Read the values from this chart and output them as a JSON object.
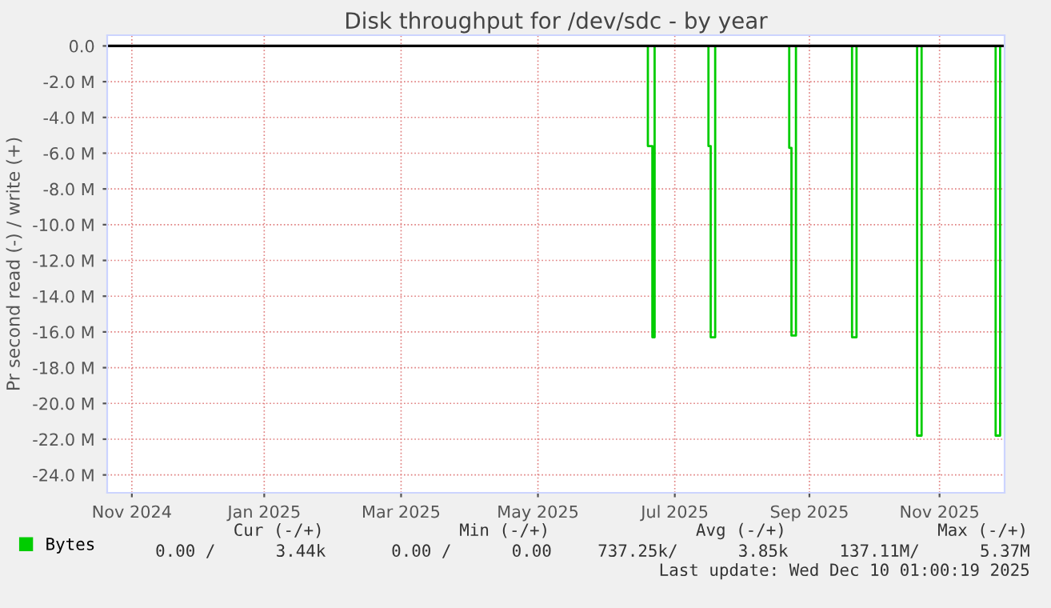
{
  "chart_data": {
    "type": "step",
    "title": "Disk throughput for /dev/sdc - by year",
    "ylabel": "Pr second read (-) / write (+)",
    "series": [
      {
        "name": "Bytes",
        "color": "#00cc00",
        "x": [
          "2024-11-06",
          "2025-07-05",
          "2025-07-07",
          "2025-07-08",
          "2025-08-01",
          "2025-08-02",
          "2025-08-04",
          "2025-09-06",
          "2025-09-07",
          "2025-09-09",
          "2025-10-04",
          "2025-10-06",
          "2025-11-02",
          "2025-11-04",
          "2025-12-07",
          "2025-12-09",
          "2025-12-10"
        ],
        "values": [
          0,
          -5.6,
          -16.3,
          0,
          -5.6,
          -16.3,
          0,
          -5.7,
          -16.2,
          0,
          -16.3,
          0,
          -21.8,
          0,
          -21.8,
          0,
          0
        ]
      }
    ],
    "xlim": [
      "2024-11-06",
      "2025-12-11"
    ],
    "xticks": [
      {
        "value": "2024-11-17",
        "label": "Nov 2024"
      },
      {
        "value": "2025-01-15",
        "label": "Jan 2025"
      },
      {
        "value": "2025-03-17",
        "label": "Mar 2025"
      },
      {
        "value": "2025-05-17",
        "label": "May 2025"
      },
      {
        "value": "2025-07-17",
        "label": "Jul 2025"
      },
      {
        "value": "2025-09-15",
        "label": "Sep 2025"
      },
      {
        "value": "2025-11-12",
        "label": "Nov 2025"
      }
    ],
    "ylim": [
      -25,
      0.6
    ],
    "yticks": [
      {
        "value": 0,
        "label": "0.0"
      },
      {
        "value": -2,
        "label": "-2.0 M"
      },
      {
        "value": -4,
        "label": "-4.0 M"
      },
      {
        "value": -6,
        "label": "-6.0 M"
      },
      {
        "value": -8,
        "label": "-8.0 M"
      },
      {
        "value": -10,
        "label": "-10.0 M"
      },
      {
        "value": -12,
        "label": "-12.0 M"
      },
      {
        "value": -14,
        "label": "-14.0 M"
      },
      {
        "value": -16,
        "label": "-16.0 M"
      },
      {
        "value": -18,
        "label": "-18.0 M"
      },
      {
        "value": -20,
        "label": "-20.0 M"
      },
      {
        "value": -22,
        "label": "-22.0 M"
      },
      {
        "value": -24,
        "label": "-24.0 M"
      }
    ],
    "ref_lines": [
      {
        "axis": "y",
        "value": 0,
        "color": "#000000"
      }
    ],
    "grid": true,
    "legend": "bottom left",
    "annotations": [
      "Cur (-/+)",
      "Min (-/+)",
      "Avg (-/+)",
      "Max (-/+)",
      "0.00 /      3.44k",
      "0.00 /      0.00",
      "737.25k/      3.85k",
      "137.11M/      5.37M",
      "Last update: Wed Dec 10 01:00:19 2025"
    ]
  }
}
